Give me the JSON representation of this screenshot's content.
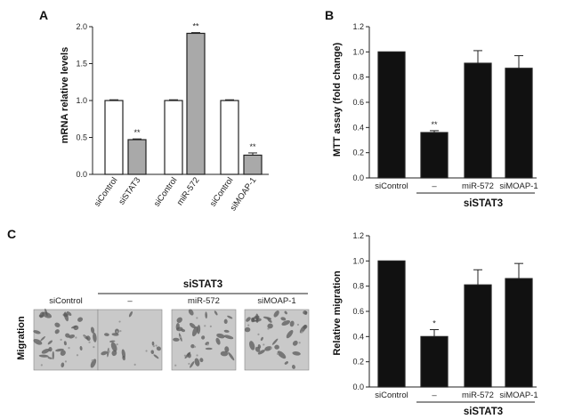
{
  "panels": {
    "a": "A",
    "b": "B",
    "c": "C"
  },
  "chart_data": [
    {
      "id": "A",
      "type": "bar",
      "ylabel": "mRNA relative levels",
      "ylim": [
        0,
        2.0
      ],
      "yticks": [
        "0.0",
        "0.5",
        "1.0",
        "1.5",
        "2.0"
      ],
      "ytick_values": [
        0,
        0.5,
        1.0,
        1.5,
        2.0
      ],
      "categories": [
        "siControl",
        "siSTAT3",
        "siControl",
        "miR-572",
        "siControl",
        "siMOAP-1"
      ],
      "values": [
        1.0,
        0.47,
        1.0,
        1.91,
        1.0,
        0.26
      ],
      "errors": [
        0.01,
        0.01,
        0.01,
        0.01,
        0.01,
        0.03
      ],
      "fills": [
        "#ffffff",
        "#a9a9a9",
        "#ffffff",
        "#a9a9a9",
        "#ffffff",
        "#a9a9a9"
      ],
      "annotations": [
        "",
        "**",
        "",
        "**",
        "",
        "**"
      ]
    },
    {
      "id": "B",
      "type": "bar",
      "ylabel": "MTT assay (fold change)",
      "ylim": [
        0,
        1.2
      ],
      "yticks": [
        "0.0",
        "0.2",
        "0.4",
        "0.6",
        "0.8",
        "1.0",
        "1.2"
      ],
      "ytick_values": [
        0,
        0.2,
        0.4,
        0.6,
        0.8,
        1.0,
        1.2
      ],
      "categories": [
        "siControl",
        "–",
        "miR-572",
        "siMOAP-1"
      ],
      "values": [
        1.0,
        0.36,
        0.91,
        0.87
      ],
      "errors": [
        0,
        0.015,
        0.1,
        0.1
      ],
      "fills": [
        "#111111",
        "#111111",
        "#111111",
        "#111111"
      ],
      "annotations": [
        "",
        "**",
        "",
        ""
      ],
      "group_label": "siSTAT3"
    },
    {
      "id": "C-chart",
      "type": "bar",
      "ylabel": "Relative migration",
      "ylim": [
        0,
        1.2
      ],
      "yticks": [
        "0.0",
        "0.2",
        "0.4",
        "0.6",
        "0.8",
        "1.0",
        "1.2"
      ],
      "ytick_values": [
        0,
        0.2,
        0.4,
        0.6,
        0.8,
        1.0,
        1.2
      ],
      "categories": [
        "siControl",
        "–",
        "miR-572",
        "siMOAP-1"
      ],
      "values": [
        1.0,
        0.4,
        0.81,
        0.86
      ],
      "errors": [
        0,
        0.055,
        0.12,
        0.12
      ],
      "fills": [
        "#111111",
        "#111111",
        "#111111",
        "#111111"
      ],
      "annotations": [
        "",
        "*",
        "",
        ""
      ],
      "group_label": "siSTAT3"
    }
  ],
  "micrographs": {
    "row_label": "Migration",
    "group_label": "siSTAT3",
    "columns": [
      "siControl",
      "–",
      "miR-572",
      "siMOAP-1"
    ],
    "cell_density": [
      0.55,
      0.25,
      0.5,
      0.55
    ]
  }
}
